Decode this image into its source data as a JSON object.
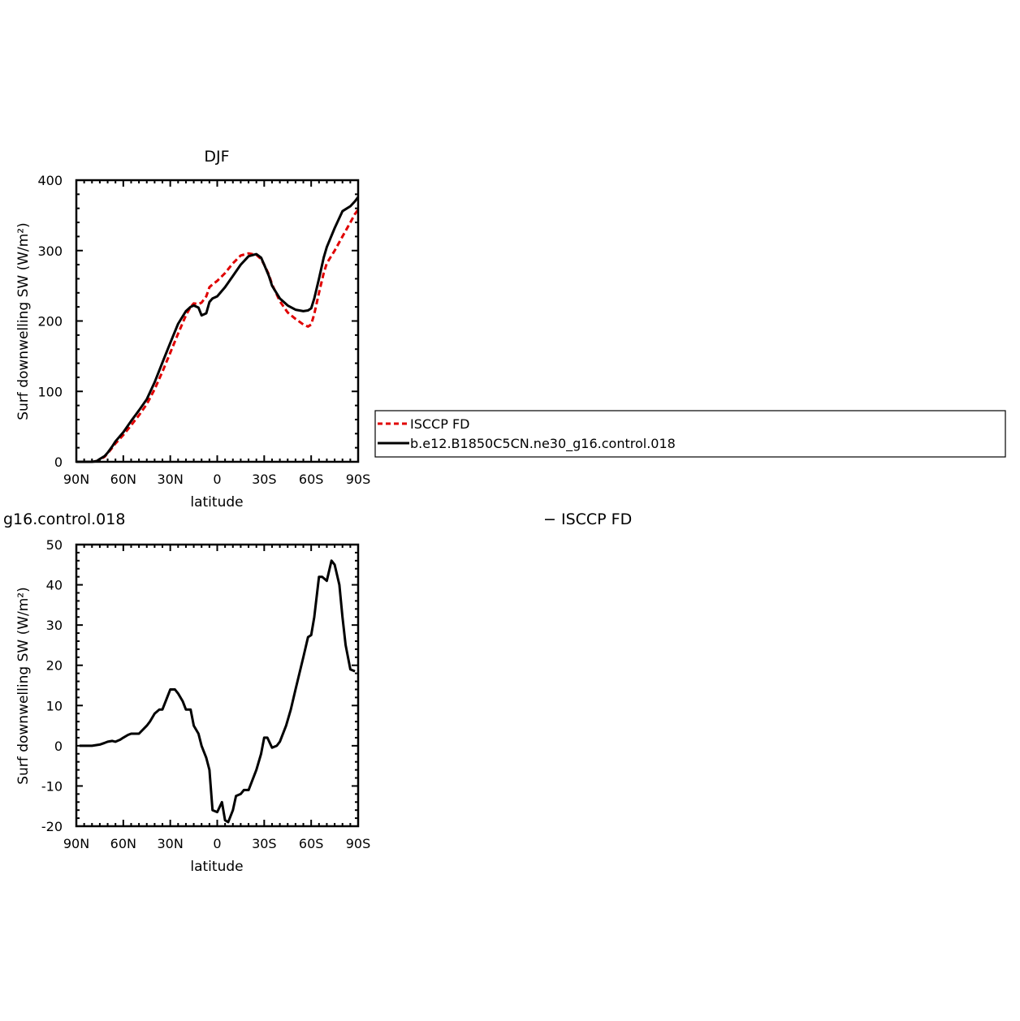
{
  "chart_data": [
    {
      "type": "line",
      "title": "DJF",
      "xlabel": "latitude",
      "ylabel": "Surf downwelling SW (W/m²)",
      "x_ticks": [
        "90N",
        "60N",
        "30N",
        "0",
        "30S",
        "60S",
        "90S"
      ],
      "x_tick_values": [
        90,
        60,
        30,
        0,
        -30,
        -60,
        -90
      ],
      "xlim": [
        90,
        -90
      ],
      "ylim": [
        0,
        400
      ],
      "y_ticks": [
        0,
        100,
        200,
        300,
        400
      ],
      "grid": false,
      "series": [
        {
          "name": "ISCCP FD",
          "color": "#e00000",
          "dash": true,
          "x": [
            90,
            85,
            80,
            77,
            75,
            72,
            70,
            67,
            65,
            60,
            55,
            50,
            45,
            40,
            35,
            30,
            25,
            20,
            17,
            15,
            12,
            10,
            7,
            5,
            3,
            0,
            -5,
            -10,
            -15,
            -20,
            -25,
            -28,
            -30,
            -33,
            -35,
            -40,
            -45,
            -50,
            -55,
            -58,
            -60,
            -62,
            -65,
            -68,
            -70,
            -75,
            -80,
            -85,
            -88,
            -90
          ],
          "y": [
            0,
            0,
            0,
            1,
            3,
            7,
            12,
            20,
            26,
            38,
            52,
            66,
            82,
            103,
            128,
            155,
            182,
            208,
            220,
            225,
            224,
            226,
            235,
            248,
            252,
            257,
            268,
            282,
            293,
            296,
            294,
            288,
            280,
            266,
            252,
            228,
            212,
            203,
            195,
            192,
            195,
            210,
            240,
            268,
            282,
            300,
            320,
            340,
            352,
            358
          ]
        },
        {
          "name": "b.e12.B1850C5CN.ne30_g16.control.018",
          "color": "#000000",
          "dash": false,
          "x": [
            90,
            85,
            80,
            77,
            75,
            72,
            70,
            67,
            65,
            60,
            55,
            50,
            45,
            40,
            35,
            30,
            25,
            20,
            17,
            15,
            12,
            10,
            7,
            5,
            3,
            0,
            -5,
            -10,
            -15,
            -20,
            -25,
            -28,
            -30,
            -33,
            -35,
            -40,
            -45,
            -50,
            -55,
            -58,
            -60,
            -62,
            -65,
            -68,
            -70,
            -75,
            -80,
            -85,
            -88,
            -90
          ],
          "y": [
            0,
            0,
            0,
            1,
            4,
            8,
            13,
            22,
            29,
            42,
            58,
            73,
            89,
            113,
            141,
            169,
            196,
            214,
            220,
            222,
            219,
            208,
            211,
            227,
            232,
            235,
            248,
            264,
            280,
            292,
            295,
            290,
            280,
            264,
            250,
            232,
            222,
            216,
            214,
            215,
            218,
            232,
            260,
            290,
            305,
            332,
            356,
            363,
            370,
            376
          ]
        }
      ]
    },
    {
      "type": "line",
      "title": "g16.control.018",
      "title_right": "− ISCCP FD",
      "xlabel": "latitude",
      "ylabel": "Surf downwelling SW (W/m²)",
      "x_ticks": [
        "90N",
        "60N",
        "30N",
        "0",
        "30S",
        "60S",
        "90S"
      ],
      "x_tick_values": [
        90,
        60,
        30,
        0,
        -30,
        -60,
        -90
      ],
      "xlim": [
        90,
        -90
      ],
      "ylim": [
        -20,
        50
      ],
      "y_ticks": [
        -20,
        -10,
        0,
        10,
        20,
        30,
        40,
        50
      ],
      "grid": false,
      "series": [
        {
          "color": "#000000",
          "dash": false,
          "x": [
            88,
            80,
            75,
            72,
            70,
            67,
            65,
            62,
            60,
            57,
            55,
            50,
            45,
            43,
            40,
            37,
            35,
            32,
            30,
            27,
            25,
            22,
            20,
            17,
            15,
            12,
            10,
            7,
            5,
            3,
            0,
            -3,
            -5,
            -7,
            -10,
            -12,
            -15,
            -17,
            -20,
            -25,
            -28,
            -30,
            -32,
            -35,
            -38,
            -40,
            -44,
            -47,
            -50,
            -55,
            -58,
            -60,
            -62,
            -65,
            -67,
            -70,
            -73,
            -75,
            -78,
            -80,
            -82,
            -85,
            -88
          ],
          "y": [
            0,
            0,
            0.3,
            0.7,
            1,
            1.2,
            1,
            1.5,
            2,
            2.7,
            3,
            3,
            5,
            6,
            8,
            9,
            9,
            12,
            14,
            14,
            13,
            11,
            9,
            9,
            5,
            3,
            0,
            -3,
            -6,
            -16,
            -16.5,
            -14,
            -18.5,
            -19,
            -16,
            -12.5,
            -12,
            -11,
            -11,
            -6,
            -2,
            2,
            2,
            -0.5,
            0,
            1,
            5,
            9,
            14,
            22,
            27,
            27.5,
            32,
            42,
            42,
            41,
            46,
            45,
            40,
            32,
            25,
            19,
            18.5
          ]
        }
      ]
    }
  ],
  "legend": {
    "items": [
      {
        "label": "ISCCP FD",
        "color": "#e00000",
        "dash": true
      },
      {
        "label": "b.e12.B1850C5CN.ne30_g16.control.018",
        "color": "#000000",
        "dash": false
      }
    ]
  }
}
